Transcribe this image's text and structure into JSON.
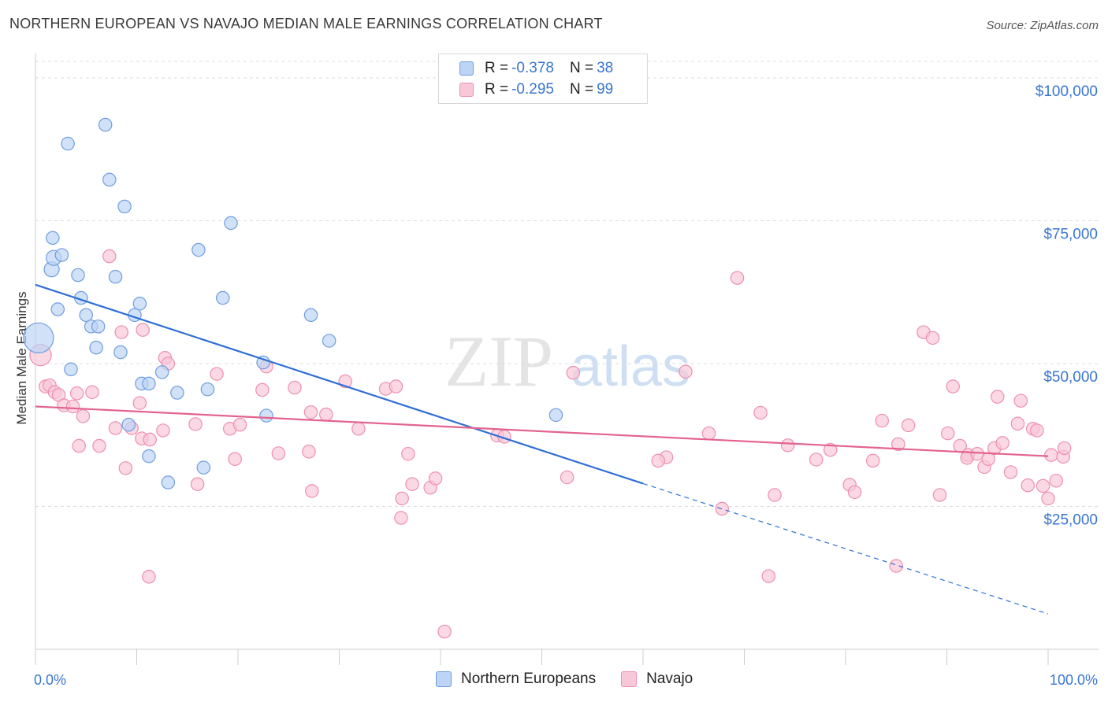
{
  "title": "NORTHERN EUROPEAN VS NAVAJO MEDIAN MALE EARNINGS CORRELATION CHART",
  "source": "Source: ZipAtlas.com",
  "watermark": {
    "zip": "ZIP",
    "atlas": "atlas"
  },
  "legend": {
    "rows": [
      {
        "r_label": "R =",
        "r_value": "-0.378",
        "n_label": "N =",
        "n_value": "38",
        "color": "#6f9ee0",
        "fill": "#bcd4f5"
      },
      {
        "r_label": "R =",
        "r_value": "-0.295",
        "n_label": "N =",
        "n_value": "99",
        "color": "#ee8fae",
        "fill": "#f8c8d8"
      }
    ]
  },
  "bottom_legend": [
    "Northern Europeans",
    "Navajo"
  ],
  "colors": {
    "blue_fill": "#bcd4f5",
    "blue_stroke": "#6f9ee0",
    "blue_line": "#2f6fd6",
    "pink_fill": "#f8c8d8",
    "pink_stroke": "#ee8fae",
    "pink_line": "#e2648f",
    "axis_text": "#3a76d0",
    "grid": "#dcdcdc"
  },
  "chart_data": {
    "type": "scatter",
    "title": "NORTHERN EUROPEAN VS NAVAJO MEDIAN MALE EARNINGS CORRELATION CHART",
    "xlabel": "",
    "ylabel": "Median Male Earnings",
    "xlim": [
      0,
      100
    ],
    "ylim": [
      0,
      104000
    ],
    "x_tick_labels": [
      "0.0%",
      "100.0%"
    ],
    "y_ticks": [
      25000,
      50000,
      75000,
      100000
    ],
    "y_tick_labels": [
      "$25,000",
      "$50,000",
      "$75,000",
      "$100,000"
    ],
    "grid": "horizontal dashed",
    "series": [
      {
        "name": "Northern Europeans",
        "r": -0.378,
        "n": 38,
        "trend": {
          "x0": 0,
          "y0": 63800,
          "x1": 60,
          "y1": 29000,
          "dashed_to_x": 100,
          "dashed_to_y": 6200
        },
        "points": [
          [
            0.3,
            54500,
            28
          ],
          [
            1.6,
            66500,
            14
          ],
          [
            1.8,
            68500,
            14
          ],
          [
            1.7,
            72000,
            12
          ],
          [
            3.2,
            88500,
            12
          ],
          [
            6.9,
            91800,
            12
          ],
          [
            7.3,
            82200,
            12
          ],
          [
            8.8,
            77500,
            12
          ],
          [
            2.6,
            69000,
            12
          ],
          [
            4.2,
            65500,
            12
          ],
          [
            7.9,
            65200,
            12
          ],
          [
            10.3,
            60500,
            12
          ],
          [
            2.2,
            59500,
            12
          ],
          [
            4.5,
            61500,
            12
          ],
          [
            5.0,
            58500,
            12
          ],
          [
            5.5,
            56500,
            12
          ],
          [
            6.2,
            56500,
            12
          ],
          [
            9.8,
            58500,
            12
          ],
          [
            6.0,
            52800,
            12
          ],
          [
            8.4,
            52000,
            12
          ],
          [
            3.5,
            49000,
            12
          ],
          [
            10.5,
            46500,
            12
          ],
          [
            11.2,
            46500,
            12
          ],
          [
            12.5,
            48500,
            12
          ],
          [
            14.0,
            44900,
            12
          ],
          [
            17.0,
            45500,
            12
          ],
          [
            18.5,
            61500,
            12
          ],
          [
            16.1,
            69900,
            12
          ],
          [
            19.3,
            74600,
            12
          ],
          [
            22.5,
            50200,
            12
          ],
          [
            22.8,
            40900,
            12
          ],
          [
            27.2,
            58500,
            12
          ],
          [
            29.0,
            54000,
            12
          ],
          [
            11.2,
            33800,
            12
          ],
          [
            13.1,
            29200,
            12
          ],
          [
            16.6,
            31800,
            12
          ],
          [
            9.2,
            39300,
            12
          ],
          [
            51.4,
            41000,
            12
          ]
        ]
      },
      {
        "name": "Navajo",
        "r": -0.295,
        "n": 99,
        "trend": {
          "x0": 0,
          "y0": 42500,
          "x1": 100,
          "y1": 33800
        },
        "points": [
          [
            0.5,
            51500,
            20
          ],
          [
            1.0,
            46000,
            12
          ],
          [
            1.4,
            46200,
            12
          ],
          [
            1.9,
            45000,
            12
          ],
          [
            2.3,
            44500,
            12
          ],
          [
            2.8,
            42700,
            12
          ],
          [
            3.7,
            42500,
            12
          ],
          [
            4.7,
            40800,
            12
          ],
          [
            5.6,
            45000,
            12
          ],
          [
            4.1,
            44800,
            12
          ],
          [
            7.3,
            68800,
            12
          ],
          [
            8.5,
            55500,
            12
          ],
          [
            10.6,
            55900,
            12
          ],
          [
            12.8,
            51000,
            12
          ],
          [
            13.1,
            50000,
            12
          ],
          [
            10.3,
            43100,
            12
          ],
          [
            7.9,
            38700,
            12
          ],
          [
            9.5,
            38700,
            12
          ],
          [
            12.6,
            38300,
            12
          ],
          [
            15.8,
            39400,
            12
          ],
          [
            17.9,
            48200,
            12
          ],
          [
            19.2,
            38600,
            12
          ],
          [
            20.2,
            39300,
            12
          ],
          [
            22.4,
            45400,
            12
          ],
          [
            22.8,
            49500,
            12
          ],
          [
            10.5,
            36900,
            12
          ],
          [
            11.3,
            36700,
            12
          ],
          [
            4.3,
            35600,
            12
          ],
          [
            6.3,
            35600,
            12
          ],
          [
            8.9,
            31700,
            12
          ],
          [
            16.0,
            28900,
            12
          ],
          [
            19.7,
            33300,
            12
          ],
          [
            24.0,
            34300,
            12
          ],
          [
            25.6,
            45800,
            12
          ],
          [
            27.3,
            27700,
            12
          ],
          [
            27.2,
            41500,
            12
          ],
          [
            27.0,
            34600,
            12
          ],
          [
            28.7,
            41100,
            12
          ],
          [
            30.6,
            46900,
            12
          ],
          [
            31.9,
            38600,
            12
          ],
          [
            34.6,
            45600,
            12
          ],
          [
            35.6,
            46000,
            12
          ],
          [
            36.8,
            34200,
            12
          ],
          [
            36.2,
            26400,
            12
          ],
          [
            36.1,
            23000,
            12
          ],
          [
            37.2,
            28900,
            12
          ],
          [
            39.0,
            28300,
            12
          ],
          [
            39.5,
            29900,
            12
          ],
          [
            45.6,
            37400,
            12
          ],
          [
            46.3,
            37200,
            12
          ],
          [
            52.5,
            30100,
            12
          ],
          [
            53.1,
            48400,
            12
          ],
          [
            62.3,
            33600,
            12
          ],
          [
            61.5,
            33000,
            12
          ],
          [
            64.2,
            48600,
            12
          ],
          [
            66.5,
            37800,
            12
          ],
          [
            67.8,
            24600,
            12
          ],
          [
            69.3,
            65000,
            12
          ],
          [
            71.6,
            41400,
            12
          ],
          [
            72.4,
            12800,
            12
          ],
          [
            74.3,
            35700,
            12
          ],
          [
            77.1,
            33200,
            12
          ],
          [
            78.5,
            34900,
            12
          ],
          [
            80.4,
            28800,
            12
          ],
          [
            80.9,
            27500,
            12
          ],
          [
            82.7,
            33000,
            12
          ],
          [
            83.6,
            40000,
            12
          ],
          [
            85.2,
            35900,
            12
          ],
          [
            86.2,
            39200,
            12
          ],
          [
            87.7,
            55500,
            12
          ],
          [
            88.6,
            54500,
            12
          ],
          [
            89.3,
            27000,
            12
          ],
          [
            90.1,
            37800,
            12
          ],
          [
            90.6,
            46000,
            12
          ],
          [
            91.3,
            35600,
            12
          ],
          [
            92.1,
            34000,
            12
          ],
          [
            92.0,
            33500,
            12
          ],
          [
            93.0,
            34200,
            12
          ],
          [
            93.7,
            31900,
            12
          ],
          [
            94.1,
            33300,
            12
          ],
          [
            94.7,
            35200,
            12
          ],
          [
            95.0,
            44200,
            12
          ],
          [
            95.5,
            36100,
            12
          ],
          [
            96.3,
            31000,
            12
          ],
          [
            97.0,
            39500,
            12
          ],
          [
            97.3,
            43500,
            12
          ],
          [
            98.0,
            28700,
            12
          ],
          [
            98.5,
            38600,
            12
          ],
          [
            98.9,
            38300,
            12
          ],
          [
            99.5,
            28600,
            12
          ],
          [
            100.0,
            26400,
            12
          ],
          [
            100.3,
            34000,
            12
          ],
          [
            100.8,
            29500,
            12
          ],
          [
            101.5,
            33700,
            12
          ],
          [
            101.6,
            35200,
            12
          ],
          [
            85.0,
            14600,
            12
          ],
          [
            11.2,
            12700,
            12
          ],
          [
            40.4,
            3100,
            12
          ],
          [
            73.0,
            27000,
            12
          ]
        ]
      }
    ]
  }
}
